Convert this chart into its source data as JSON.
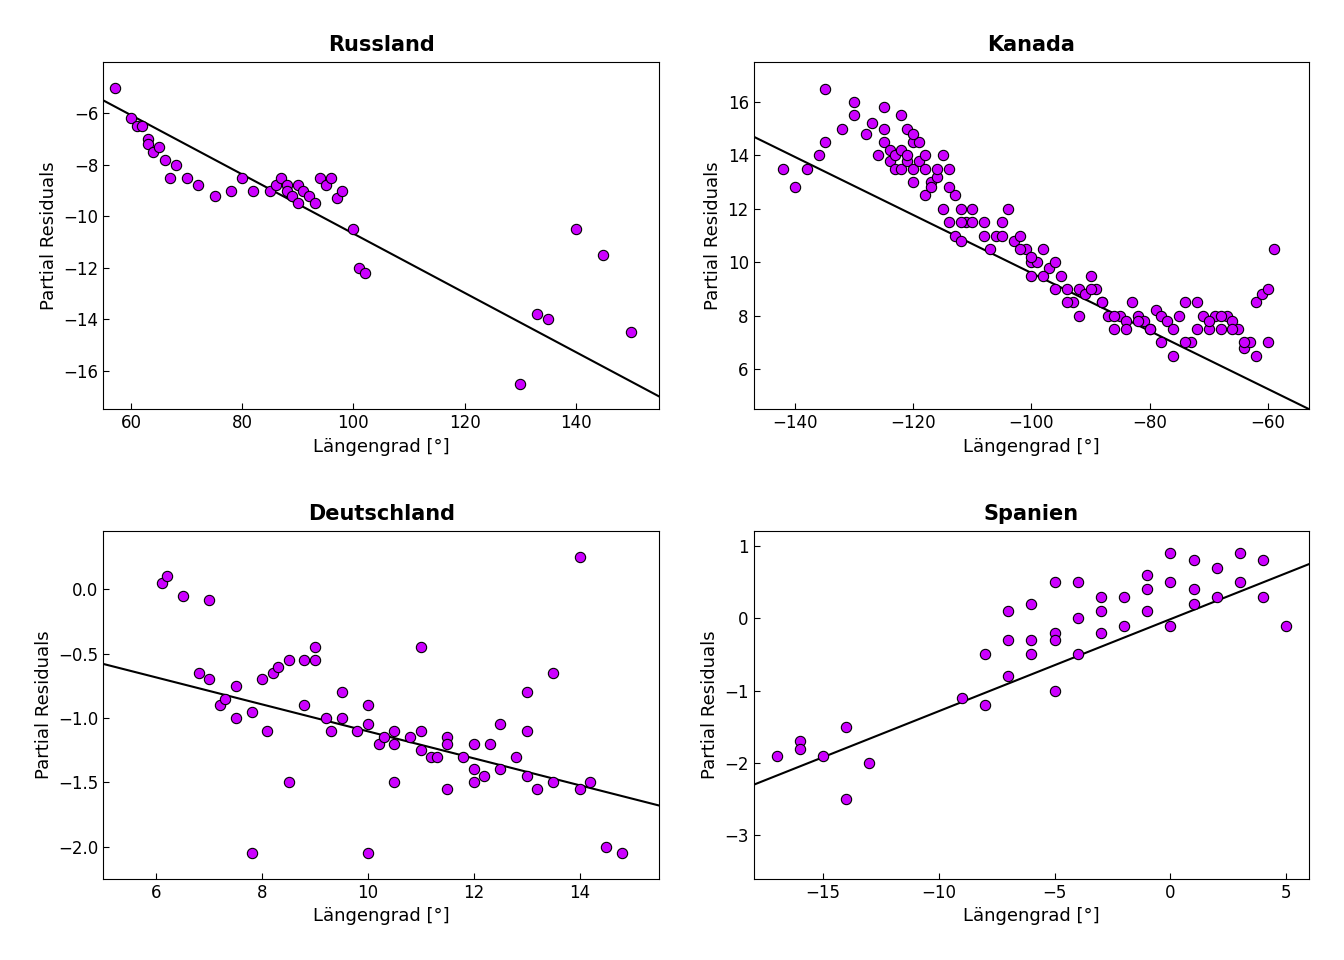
{
  "panels": [
    {
      "title": "Russland",
      "xlabel": "Längengrad [°]",
      "ylabel": "Partial Residuals",
      "xlim": [
        55,
        155
      ],
      "ylim": [
        -17.5,
        -4.0
      ],
      "xticks": [
        60,
        80,
        100,
        120,
        140
      ],
      "yticks": [
        -6,
        -8,
        -10,
        -12,
        -14,
        -16
      ],
      "line_x": [
        55,
        155
      ],
      "line_y": [
        -5.5,
        -17.0
      ],
      "points_x": [
        57,
        60,
        61,
        62,
        63,
        63,
        64,
        65,
        66,
        67,
        68,
        70,
        72,
        75,
        78,
        80,
        82,
        85,
        86,
        87,
        88,
        88,
        89,
        90,
        90,
        91,
        92,
        93,
        94,
        95,
        96,
        97,
        98,
        100,
        101,
        102,
        130,
        133,
        135,
        140,
        145,
        150
      ],
      "points_y": [
        -5.0,
        -6.2,
        -6.5,
        -6.5,
        -7.0,
        -7.2,
        -7.5,
        -7.3,
        -7.8,
        -8.5,
        -8.0,
        -8.5,
        -8.8,
        -9.2,
        -9.0,
        -8.5,
        -9.0,
        -9.0,
        -8.8,
        -8.5,
        -8.8,
        -9.0,
        -9.2,
        -9.5,
        -8.8,
        -9.0,
        -9.2,
        -9.5,
        -8.5,
        -8.8,
        -8.5,
        -9.3,
        -9.0,
        -10.5,
        -12.0,
        -12.2,
        -16.5,
        -13.8,
        -14.0,
        -10.5,
        -11.5,
        -14.5
      ]
    },
    {
      "title": "Kanada",
      "xlabel": "Längengrad [°]",
      "ylabel": "Partial Residuals",
      "xlim": [
        -147,
        -53
      ],
      "ylim": [
        4.5,
        17.5
      ],
      "xticks": [
        -140,
        -120,
        -100,
        -80,
        -60
      ],
      "yticks": [
        6,
        8,
        10,
        12,
        14,
        16
      ],
      "line_x": [
        -147,
        -53
      ],
      "line_y": [
        14.7,
        4.5
      ],
      "points_x": [
        -142,
        -140,
        -138,
        -136,
        -135,
        -132,
        -130,
        -128,
        -127,
        -126,
        -125,
        -125,
        -124,
        -124,
        -123,
        -123,
        -122,
        -122,
        -121,
        -121,
        -121,
        -120,
        -120,
        -120,
        -119,
        -119,
        -118,
        -118,
        -117,
        -117,
        -116,
        -115,
        -115,
        -114,
        -114,
        -113,
        -113,
        -112,
        -112,
        -111,
        -110,
        -108,
        -107,
        -106,
        -105,
        -104,
        -103,
        -102,
        -101,
        -100,
        -100,
        -99,
        -98,
        -97,
        -96,
        -95,
        -94,
        -93,
        -92,
        -91,
        -90,
        -89,
        -88,
        -87,
        -86,
        -85,
        -84,
        -83,
        -82,
        -81,
        -80,
        -79,
        -78,
        -77,
        -76,
        -75,
        -74,
        -73,
        -72,
        -71,
        -70,
        -69,
        -68,
        -67,
        -66,
        -65,
        -64,
        -63,
        -62,
        -61,
        -60,
        -59,
        -135,
        -130,
        -125,
        -122,
        -120,
        -118,
        -116,
        -114,
        -112,
        -110,
        -108,
        -105,
        -102,
        -100,
        -98,
        -96,
        -94,
        -92,
        -90,
        -88,
        -86,
        -84,
        -82,
        -80,
        -78,
        -76,
        -74,
        -72,
        -70,
        -68,
        -66,
        -64,
        -62,
        -60
      ],
      "points_y": [
        13.5,
        12.8,
        13.5,
        14.0,
        14.5,
        15.0,
        15.5,
        14.8,
        15.2,
        14.0,
        14.5,
        15.0,
        14.2,
        13.8,
        14.0,
        13.5,
        14.2,
        13.5,
        13.8,
        14.0,
        15.0,
        14.5,
        13.5,
        13.0,
        13.8,
        14.5,
        12.5,
        13.5,
        13.0,
        12.8,
        13.2,
        12.0,
        14.0,
        13.5,
        11.5,
        12.5,
        11.0,
        10.8,
        12.0,
        11.5,
        12.0,
        11.5,
        10.5,
        11.0,
        11.5,
        12.0,
        10.8,
        11.0,
        10.5,
        10.0,
        9.5,
        10.0,
        10.5,
        9.8,
        10.0,
        9.5,
        9.0,
        8.5,
        9.0,
        8.8,
        9.5,
        9.0,
        8.5,
        8.0,
        7.5,
        8.0,
        7.8,
        8.5,
        8.0,
        7.8,
        7.5,
        8.2,
        8.0,
        7.8,
        7.5,
        8.0,
        8.5,
        7.0,
        8.5,
        8.0,
        7.5,
        8.0,
        7.5,
        8.0,
        7.8,
        7.5,
        6.8,
        7.0,
        8.5,
        8.8,
        9.0,
        10.5,
        16.5,
        16.0,
        15.8,
        15.5,
        14.8,
        14.0,
        13.5,
        12.8,
        11.5,
        11.5,
        11.0,
        11.0,
        10.5,
        10.2,
        9.5,
        9.0,
        8.5,
        8.0,
        9.0,
        8.5,
        8.0,
        7.5,
        7.8,
        7.5,
        7.0,
        6.5,
        7.0,
        7.5,
        7.8,
        8.0,
        7.5,
        7.0,
        6.5,
        7.0
      ]
    },
    {
      "title": "Deutschland",
      "xlabel": "Längengrad [°]",
      "ylabel": "Partial Residuals",
      "xlim": [
        5.0,
        15.5
      ],
      "ylim": [
        -2.25,
        0.45
      ],
      "xticks": [
        6,
        8,
        10,
        12,
        14
      ],
      "yticks": [
        0.0,
        -0.5,
        -1.0,
        -1.5,
        -2.0
      ],
      "line_x": [
        5.0,
        15.5
      ],
      "line_y": [
        -0.58,
        -1.68
      ],
      "points_x": [
        6.1,
        6.5,
        6.8,
        7.0,
        7.2,
        7.3,
        7.5,
        7.5,
        7.8,
        8.0,
        8.1,
        8.2,
        8.3,
        8.5,
        8.8,
        8.8,
        9.0,
        9.2,
        9.3,
        9.5,
        9.5,
        9.8,
        10.0,
        10.0,
        10.2,
        10.3,
        10.5,
        10.5,
        10.8,
        11.0,
        11.0,
        11.2,
        11.3,
        11.5,
        11.5,
        11.8,
        12.0,
        12.0,
        12.2,
        12.3,
        12.5,
        12.8,
        13.0,
        13.0,
        13.2,
        13.5,
        14.0,
        14.2,
        14.5,
        6.2,
        7.0,
        7.8,
        8.5,
        9.0,
        10.0,
        10.5,
        11.0,
        11.5,
        12.0,
        12.5,
        13.0,
        13.5,
        14.0,
        14.8
      ],
      "points_y": [
        0.05,
        -0.05,
        -0.65,
        -0.7,
        -0.9,
        -0.85,
        -0.75,
        -1.0,
        -0.95,
        -0.7,
        -1.1,
        -0.65,
        -0.6,
        -0.55,
        -0.55,
        -0.9,
        -0.55,
        -1.0,
        -1.1,
        -0.8,
        -1.0,
        -1.1,
        -0.9,
        -1.05,
        -1.2,
        -1.15,
        -1.1,
        -1.2,
        -1.15,
        -1.1,
        -1.25,
        -1.3,
        -1.3,
        -1.15,
        -1.2,
        -1.3,
        -1.2,
        -1.4,
        -1.45,
        -1.2,
        -1.4,
        -1.3,
        -0.8,
        -1.45,
        -1.55,
        -1.5,
        -1.55,
        -1.5,
        -2.0,
        0.1,
        -0.08,
        -2.05,
        -1.5,
        -0.45,
        -2.05,
        -1.5,
        -0.45,
        -1.55,
        -1.5,
        -1.05,
        -1.1,
        -0.65,
        0.25,
        -2.05
      ]
    },
    {
      "title": "Spanien",
      "xlabel": "Längengrad [°]",
      "ylabel": "Partial Residuals",
      "xlim": [
        -18,
        6
      ],
      "ylim": [
        -3.6,
        1.2
      ],
      "xticks": [
        -15,
        -10,
        -5,
        0,
        5
      ],
      "yticks": [
        1,
        0,
        -1,
        -2,
        -3
      ],
      "line_x": [
        -18,
        6
      ],
      "line_y": [
        -2.3,
        0.75
      ],
      "points_x": [
        -17,
        -16,
        -16,
        -15,
        -14,
        -14,
        -13,
        -9,
        -8,
        -8,
        -7,
        -7,
        -7,
        -6,
        -6,
        -6,
        -5,
        -5,
        -5,
        -5,
        -4,
        -4,
        -4,
        -3,
        -3,
        -3,
        -2,
        -2,
        -1,
        -1,
        -1,
        0,
        0,
        0,
        1,
        1,
        1,
        2,
        2,
        3,
        3,
        4,
        4,
        5
      ],
      "points_y": [
        -1.9,
        -1.7,
        -1.8,
        -1.9,
        -2.5,
        -1.5,
        -2.0,
        -1.1,
        -0.5,
        -1.2,
        -0.8,
        0.1,
        -0.3,
        -0.3,
        0.2,
        -0.5,
        -0.2,
        -0.3,
        0.5,
        -1.0,
        -0.5,
        0.0,
        0.5,
        -0.2,
        0.1,
        0.3,
        -0.1,
        0.3,
        0.1,
        0.4,
        0.6,
        -0.1,
        0.5,
        0.9,
        0.2,
        0.8,
        0.4,
        0.3,
        0.7,
        0.5,
        0.9,
        0.3,
        0.8,
        -0.1
      ]
    }
  ],
  "dot_color": "#CC00FF",
  "dot_size": 55,
  "dot_edgecolor": "#000000",
  "dot_edgewidth": 0.8,
  "line_color": "#000000",
  "line_width": 1.5,
  "bg_color": "#FFFFFF",
  "title_fontsize": 15,
  "label_fontsize": 13,
  "tick_fontsize": 12
}
